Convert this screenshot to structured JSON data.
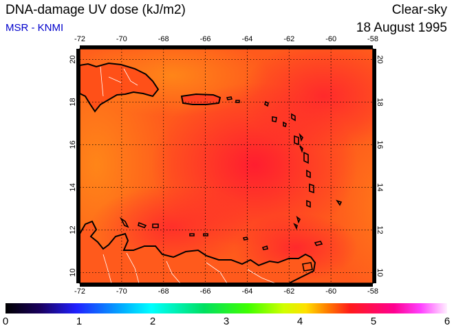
{
  "header": {
    "title": "DNA-damage UV dose (kJ/m2)",
    "subtitle": "MSR - KNMI",
    "sky_condition": "Clear-sky",
    "date": "18 August 1995"
  },
  "colors": {
    "subtitle": "#0000cc",
    "field_low": "#ff7a10",
    "field_high": "#ff1e2e",
    "coastline": "#000000",
    "borders": "#ffffff"
  },
  "map": {
    "projection": "lat-lon",
    "lon_range": [
      -72,
      -58
    ],
    "lat_range": [
      9.5,
      20.5
    ],
    "lon_ticks": [
      "-72",
      "-70",
      "-68",
      "-66",
      "-64",
      "-62",
      "-60",
      "-58"
    ],
    "lat_ticks": [
      "10",
      "12",
      "14",
      "16",
      "18",
      "20"
    ],
    "gridlines": "dotted"
  },
  "colorbar": {
    "min": 0,
    "max": 6,
    "labels": [
      "0",
      "1",
      "2",
      "3",
      "4",
      "5",
      "6"
    ]
  }
}
